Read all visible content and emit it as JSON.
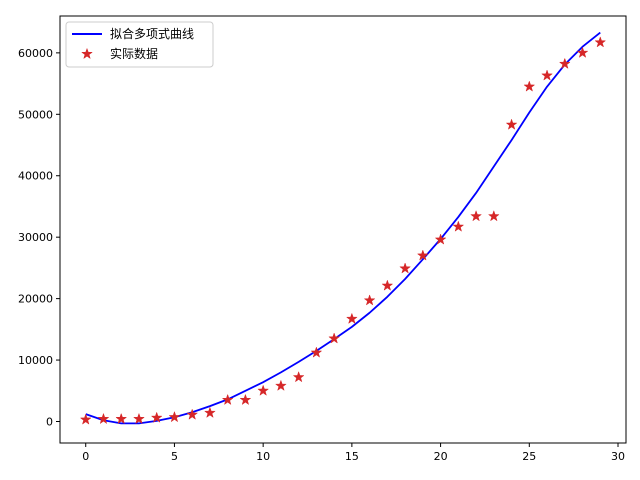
{
  "chart_data": {
    "type": "scatter",
    "title": "",
    "xlabel": "",
    "ylabel": "",
    "xlim": [
      -1.45,
      30.45
    ],
    "ylim": [
      -3500,
      66000
    ],
    "xticks": [
      0,
      5,
      10,
      15,
      20,
      25,
      30
    ],
    "yticks": [
      0,
      10000,
      20000,
      30000,
      40000,
      50000,
      60000
    ],
    "grid": false,
    "legend_position": "top-left",
    "series": [
      {
        "name": "拟合多项式曲线",
        "kind": "line",
        "color": "#0000ff",
        "x": [
          0,
          1,
          2,
          3,
          4,
          5,
          6,
          7,
          8,
          9,
          10,
          11,
          12,
          13,
          14,
          15,
          16,
          17,
          18,
          19,
          20,
          21,
          22,
          23,
          24,
          25,
          26,
          27,
          28,
          29
        ],
        "y": [
          1200,
          200,
          -300,
          -300,
          100,
          700,
          1500,
          2500,
          3600,
          5000,
          6400,
          8000,
          9700,
          11500,
          13400,
          15400,
          17700,
          20300,
          23200,
          26400,
          29700,
          33300,
          37200,
          41500,
          45800,
          50300,
          54500,
          58100,
          61000,
          63300
        ]
      },
      {
        "name": "实际数据",
        "kind": "scatter",
        "marker": "star",
        "color": "#d62728",
        "x": [
          0,
          1,
          2,
          3,
          4,
          5,
          6,
          7,
          8,
          9,
          10,
          11,
          12,
          13,
          14,
          15,
          16,
          17,
          18,
          19,
          20,
          21,
          22,
          23,
          24,
          25,
          26,
          27,
          28,
          29
        ],
        "y": [
          300,
          400,
          400,
          400,
          600,
          700,
          1100,
          1400,
          3500,
          3500,
          5000,
          5800,
          7200,
          11200,
          13500,
          16700,
          19700,
          22100,
          24900,
          27000,
          29600,
          31700,
          33400,
          33400,
          48300,
          54500,
          56300,
          58200,
          60000,
          61700
        ]
      }
    ]
  }
}
